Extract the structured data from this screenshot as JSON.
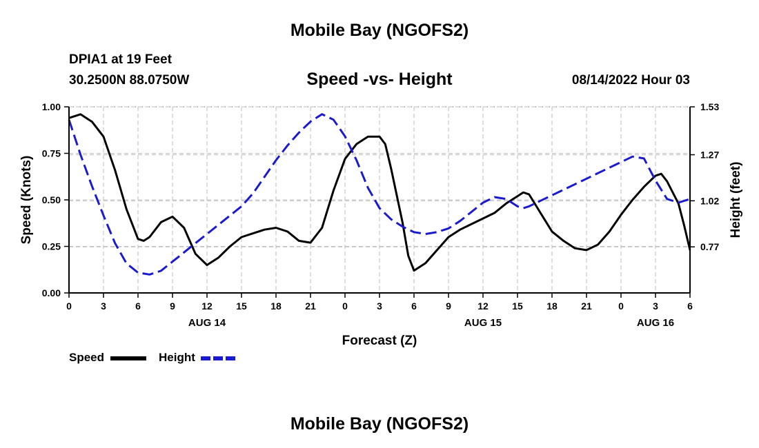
{
  "header": {
    "title": "Mobile Bay (NGOFS2)",
    "station": "DPIA1 at 19 Feet",
    "coords": "30.2500N  88.0750W",
    "date": "08/14/2022 Hour 03"
  },
  "footer": {
    "title": "Mobile Bay (NGOFS2)"
  },
  "legend": [
    {
      "label": "Speed",
      "color": "#000000",
      "style": "solid"
    },
    {
      "label": "Height",
      "color": "#1a1ad0",
      "style": "dashed"
    }
  ],
  "chart_data": {
    "type": "line",
    "title": "Speed -vs- Height",
    "xlabel": "Forecast (Z)",
    "ylabel": "Speed (Knots)",
    "y2label": "Height (feet)",
    "xlim": [
      0,
      54
    ],
    "ylim": [
      0,
      1.0
    ],
    "y2lim": [
      0.52,
      1.53
    ],
    "grid": true,
    "x_ticks": [
      0,
      3,
      6,
      9,
      12,
      15,
      18,
      21,
      24,
      27,
      30,
      33,
      36,
      39,
      42,
      45,
      48,
      51,
      54
    ],
    "x_tick_labels": [
      "0",
      "3",
      "6",
      "9",
      "12",
      "15",
      "18",
      "21",
      "0",
      "3",
      "6",
      "9",
      "12",
      "15",
      "18",
      "21",
      "0",
      "3",
      "6"
    ],
    "date_labels": [
      {
        "x": 12,
        "label": "AUG 14"
      },
      {
        "x": 36,
        "label": "AUG 15"
      },
      {
        "x": 51,
        "label": "AUG 16"
      }
    ],
    "y_ticks": [
      0,
      0.25,
      0.5,
      0.75,
      1.0
    ],
    "y_tick_labels": [
      "0.00",
      "0.25",
      "0.50",
      "0.75",
      "1.00"
    ],
    "y2_ticks": [
      0.77,
      1.02,
      1.27,
      1.53
    ],
    "y2_tick_labels": [
      "0.77",
      "1.02",
      "1.27",
      "1.53"
    ],
    "series": [
      {
        "name": "Speed",
        "axis": "left",
        "color": "#000000",
        "dashed": false,
        "points": [
          [
            0,
            0.94
          ],
          [
            1,
            0.96
          ],
          [
            2,
            0.92
          ],
          [
            3,
            0.84
          ],
          [
            4,
            0.66
          ],
          [
            5,
            0.45
          ],
          [
            6,
            0.29
          ],
          [
            6.5,
            0.28
          ],
          [
            7,
            0.3
          ],
          [
            8,
            0.38
          ],
          [
            9,
            0.41
          ],
          [
            10,
            0.35
          ],
          [
            11,
            0.21
          ],
          [
            12,
            0.15
          ],
          [
            13,
            0.19
          ],
          [
            14,
            0.25
          ],
          [
            15,
            0.3
          ],
          [
            16,
            0.32
          ],
          [
            17,
            0.34
          ],
          [
            18,
            0.35
          ],
          [
            19,
            0.33
          ],
          [
            20,
            0.28
          ],
          [
            21,
            0.27
          ],
          [
            22,
            0.35
          ],
          [
            23,
            0.55
          ],
          [
            24,
            0.72
          ],
          [
            25,
            0.8
          ],
          [
            26,
            0.84
          ],
          [
            27,
            0.84
          ],
          [
            27.5,
            0.8
          ],
          [
            28,
            0.67
          ],
          [
            29,
            0.38
          ],
          [
            29.5,
            0.2
          ],
          [
            30,
            0.12
          ],
          [
            31,
            0.16
          ],
          [
            32,
            0.23
          ],
          [
            33,
            0.3
          ],
          [
            34,
            0.34
          ],
          [
            35,
            0.37
          ],
          [
            36,
            0.4
          ],
          [
            37,
            0.43
          ],
          [
            38,
            0.48
          ],
          [
            39,
            0.52
          ],
          [
            39.5,
            0.54
          ],
          [
            40,
            0.53
          ],
          [
            41,
            0.43
          ],
          [
            42,
            0.33
          ],
          [
            43,
            0.28
          ],
          [
            44,
            0.24
          ],
          [
            45,
            0.23
          ],
          [
            46,
            0.26
          ],
          [
            47,
            0.33
          ],
          [
            48,
            0.42
          ],
          [
            49,
            0.5
          ],
          [
            50,
            0.57
          ],
          [
            51,
            0.63
          ],
          [
            51.5,
            0.64
          ],
          [
            52,
            0.6
          ],
          [
            53,
            0.48
          ],
          [
            53.5,
            0.36
          ],
          [
            54,
            0.23
          ]
        ]
      },
      {
        "name": "Height",
        "axis": "right",
        "color": "#1a1ad0",
        "dashed": true,
        "points": [
          [
            0,
            1.46
          ],
          [
            1,
            1.27
          ],
          [
            2,
            1.1
          ],
          [
            3,
            0.94
          ],
          [
            4,
            0.79
          ],
          [
            5,
            0.68
          ],
          [
            6,
            0.63
          ],
          [
            7,
            0.62
          ],
          [
            8,
            0.64
          ],
          [
            9,
            0.69
          ],
          [
            10,
            0.74
          ],
          [
            11,
            0.79
          ],
          [
            12,
            0.84
          ],
          [
            13,
            0.89
          ],
          [
            14,
            0.94
          ],
          [
            15,
            0.99
          ],
          [
            16,
            1.06
          ],
          [
            17,
            1.15
          ],
          [
            18,
            1.24
          ],
          [
            19,
            1.32
          ],
          [
            20,
            1.39
          ],
          [
            21,
            1.45
          ],
          [
            22,
            1.49
          ],
          [
            23,
            1.46
          ],
          [
            24,
            1.37
          ],
          [
            25,
            1.24
          ],
          [
            26,
            1.09
          ],
          [
            27,
            0.98
          ],
          [
            28,
            0.92
          ],
          [
            29,
            0.88
          ],
          [
            30,
            0.85
          ],
          [
            31,
            0.84
          ],
          [
            32,
            0.85
          ],
          [
            33,
            0.87
          ],
          [
            34,
            0.91
          ],
          [
            35,
            0.96
          ],
          [
            36,
            1.01
          ],
          [
            37,
            1.04
          ],
          [
            38,
            1.03
          ],
          [
            38.5,
            1.01
          ],
          [
            39,
            0.99
          ],
          [
            39.5,
            0.98
          ],
          [
            40,
            0.99
          ],
          [
            41,
            1.02
          ],
          [
            42,
            1.05
          ],
          [
            43,
            1.08
          ],
          [
            44,
            1.11
          ],
          [
            45,
            1.14
          ],
          [
            46,
            1.17
          ],
          [
            47,
            1.2
          ],
          [
            48,
            1.23
          ],
          [
            49,
            1.26
          ],
          [
            50,
            1.25
          ],
          [
            51,
            1.13
          ],
          [
            52,
            1.03
          ],
          [
            53,
            1.01
          ],
          [
            54,
            1.03
          ]
        ]
      }
    ]
  }
}
